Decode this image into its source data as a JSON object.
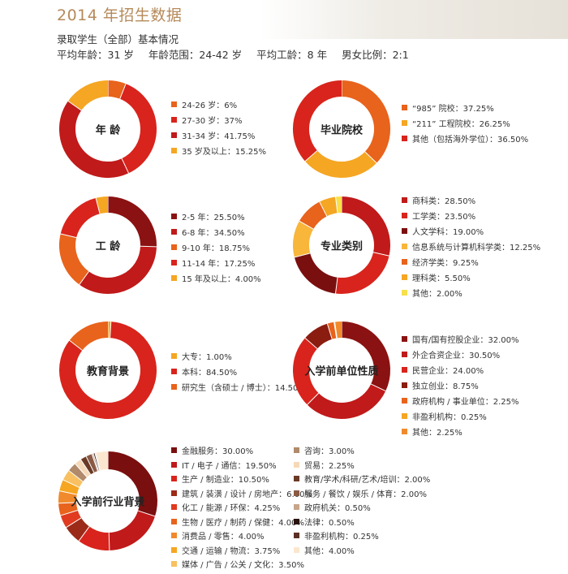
{
  "title": "2014 年招生数据",
  "subhead": "录取学生（全部）基本情况",
  "stats": [
    "平均年龄：31 岁",
    "年龄范围：24-42 岁",
    "平均工龄：8 年",
    "男女比例：2:1"
  ],
  "chart_data": [
    {
      "type": "pie",
      "title": "年 龄",
      "series": [
        {
          "label": "24-26 岁：6%",
          "value": 6,
          "color": "#e8631c"
        },
        {
          "label": "27-30 岁：37%",
          "value": 37,
          "color": "#d8241c"
        },
        {
          "label": "31-34 岁：41.75%",
          "value": 41.75,
          "color": "#c01a1a"
        },
        {
          "label": "35 岁及以上：15.25%",
          "value": 15.25,
          "color": "#f5a623"
        }
      ]
    },
    {
      "type": "pie",
      "title": "毕业院校",
      "series": [
        {
          "label": "“985” 院校：37.25%",
          "value": 37.25,
          "color": "#e8631c"
        },
        {
          "label": "“211” 工程院校：26.25%",
          "value": 26.25,
          "color": "#f5a623"
        },
        {
          "label": "其他（包括海外学位）：36.50%",
          "value": 36.5,
          "color": "#d8241c"
        }
      ]
    },
    {
      "type": "pie",
      "title": "工 龄",
      "series": [
        {
          "label": "2-5 年：25.50%",
          "value": 25.5,
          "color": "#8b1212"
        },
        {
          "label": "6-8 年：34.50%",
          "value": 34.5,
          "color": "#c01a1a"
        },
        {
          "label": "9-10 年：18.75%",
          "value": 18.75,
          "color": "#e8631c"
        },
        {
          "label": "11-14 年：17.25%",
          "value": 17.25,
          "color": "#d8241c"
        },
        {
          "label": "15 年及以上：4.00%",
          "value": 4,
          "color": "#f5a623"
        }
      ]
    },
    {
      "type": "pie",
      "title": "专业类别",
      "series": [
        {
          "label": "商科类：28.50%",
          "value": 28.5,
          "color": "#c01a1a"
        },
        {
          "label": "工学类：23.50%",
          "value": 23.5,
          "color": "#d8241c"
        },
        {
          "label": "人文学科：19.00%",
          "value": 19,
          "color": "#7a0f0f"
        },
        {
          "label": "信息系统与计算机科学类：12.25%",
          "value": 12.25,
          "color": "#f8b63a"
        },
        {
          "label": "经济学类：9.25%",
          "value": 9.25,
          "color": "#e8631c"
        },
        {
          "label": "理科类：5.50%",
          "value": 5.5,
          "color": "#f5a623"
        },
        {
          "label": "其他：2.00%",
          "value": 2,
          "color": "#f7e04a"
        }
      ]
    },
    {
      "type": "pie",
      "title": "教育背景",
      "series": [
        {
          "label": "大专：1.00%",
          "value": 1,
          "color": "#f5a623"
        },
        {
          "label": "本科：84.50%",
          "value": 84.5,
          "color": "#d8241c"
        },
        {
          "label": "研究生（含硕士 / 博士）：14.50%",
          "value": 14.5,
          "color": "#e8631c"
        }
      ]
    },
    {
      "type": "pie",
      "title": "入学前单位性质",
      "series": [
        {
          "label": "国有/国有控股企业：32.00%",
          "value": 32,
          "color": "#8b1212"
        },
        {
          "label": "外企合资企业：30.50%",
          "value": 30.5,
          "color": "#c01a1a"
        },
        {
          "label": "民营企业：24.00%",
          "value": 24,
          "color": "#d8241c"
        },
        {
          "label": "独立创业：8.75%",
          "value": 8.75,
          "color": "#8a1c10"
        },
        {
          "label": "政府机构 / 事业单位：2.25%",
          "value": 2.25,
          "color": "#e8631c"
        },
        {
          "label": "非盈利机构：0.25%",
          "value": 0.25,
          "color": "#f5a623"
        },
        {
          "label": "其他：2.25%",
          "value": 2.25,
          "color": "#f08a2c"
        }
      ]
    },
    {
      "type": "pie",
      "title": "入学前行业背景",
      "series": [
        {
          "label": "金融服务：30.00%",
          "value": 30,
          "color": "#7a0f0f"
        },
        {
          "label": "IT / 电子 / 通信：19.50%",
          "value": 19.5,
          "color": "#c01a1a"
        },
        {
          "label": "生产 / 制造业：10.50%",
          "value": 10.5,
          "color": "#d8241c"
        },
        {
          "label": "建筑 / 装潢 / 设计 / 房地产：6.00%",
          "value": 6,
          "color": "#9b2a18"
        },
        {
          "label": "化工 / 能源 / 环保：4.25%",
          "value": 4.25,
          "color": "#e03a20"
        },
        {
          "label": "生物 / 医疗 / 制药 / 保健：4.00%",
          "value": 4,
          "color": "#e8631c"
        },
        {
          "label": "消费品 / 零售：4.00%",
          "value": 4,
          "color": "#f08a2c"
        },
        {
          "label": "交通 / 运输 / 物流：3.75%",
          "value": 3.75,
          "color": "#f5a623"
        },
        {
          "label": "媒体 / 广告 / 公关 / 文化：3.50%",
          "value": 3.5,
          "color": "#f8c060"
        },
        {
          "label": "咨询：3.00%",
          "value": 3,
          "color": "#b08a6a"
        },
        {
          "label": "贸易：2.25%",
          "value": 2.25,
          "color": "#f5d9b8"
        },
        {
          "label": "教育/学术/科研/艺术/培训：2.00%",
          "value": 2,
          "color": "#6b3a26"
        },
        {
          "label": "服务 / 餐饮 / 娱乐 / 体育：2.00%",
          "value": 2,
          "color": "#8a5a44"
        },
        {
          "label": "政府机关：0.50%",
          "value": 0.5,
          "color": "#c7a58a"
        },
        {
          "label": "法律：0.50%",
          "value": 0.5,
          "color": "#2a120c"
        },
        {
          "label": "非盈利机构：0.25%",
          "value": 0.25,
          "color": "#5a3024"
        },
        {
          "label": "其他：4.00%",
          "value": 4,
          "color": "#fbe7cf"
        }
      ]
    }
  ]
}
